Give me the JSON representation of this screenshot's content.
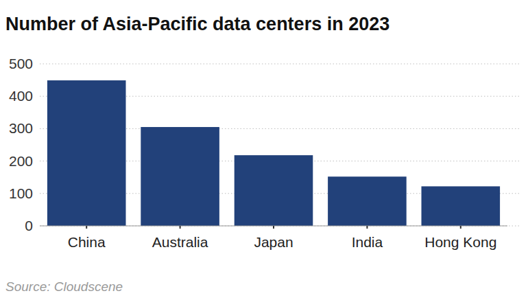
{
  "chart_data": {
    "type": "bar",
    "title": "Number of Asia-Pacific data centers in 2023",
    "categories": [
      "China",
      "Australia",
      "Japan",
      "India",
      "Hong Kong"
    ],
    "values": [
      449,
      305,
      218,
      152,
      122
    ],
    "color": "#22417a",
    "ylim": [
      0,
      500
    ],
    "yticks": [
      0,
      100,
      200,
      300,
      400,
      500
    ],
    "grid": true,
    "source": "Source: Cloudscene"
  }
}
